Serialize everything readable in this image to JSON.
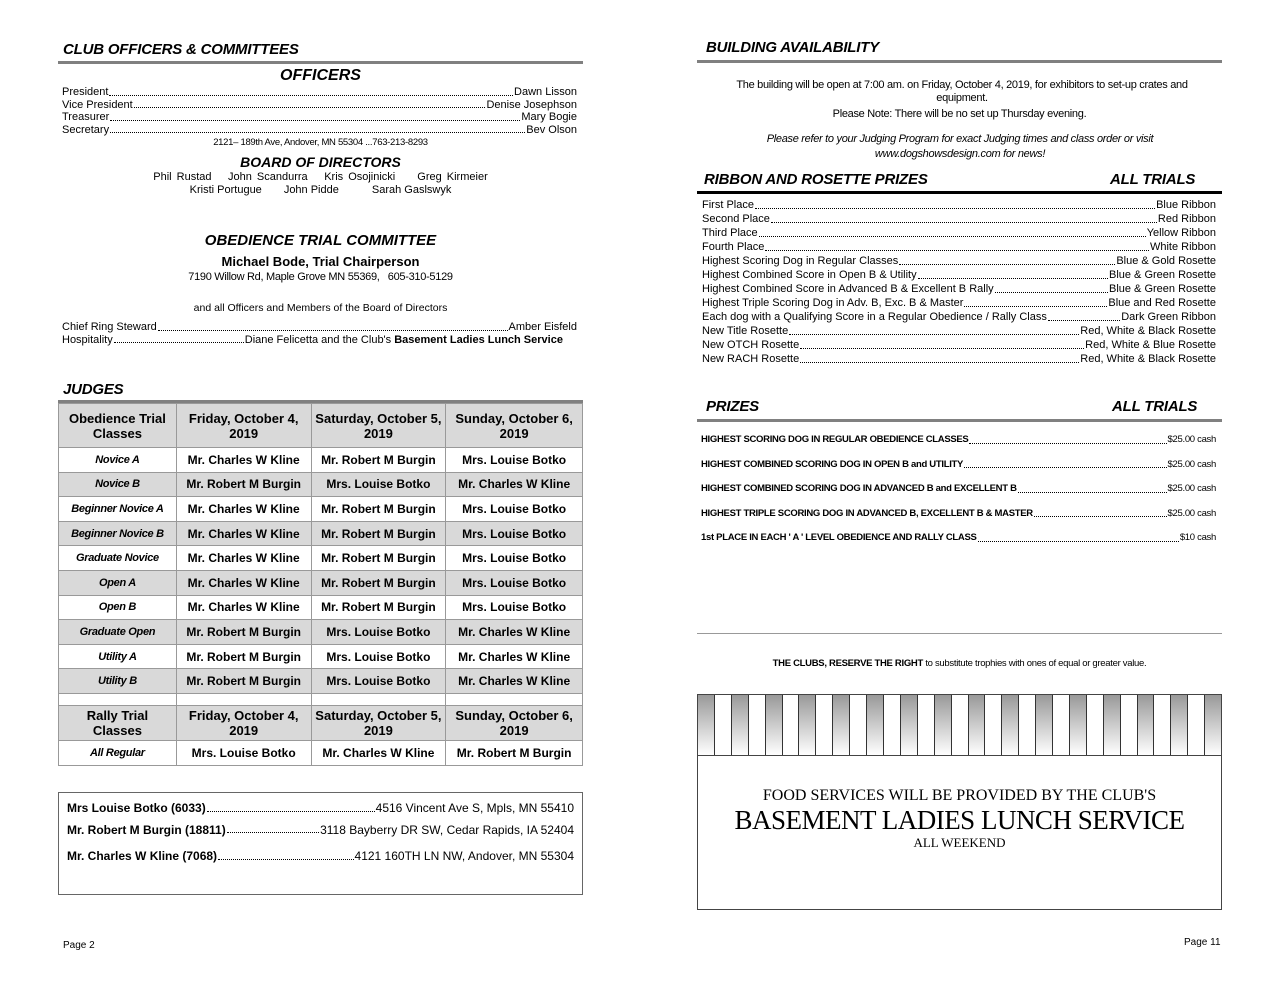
{
  "left": {
    "section_title": "CLUB OFFICERS & COMMITTEES",
    "officers_title": "OFFICERS",
    "officers": [
      {
        "role": "President",
        "name": "Dawn Lisson"
      },
      {
        "role": "Vice President",
        "name": "Denise Josephson"
      },
      {
        "role": "Treasurer",
        "name": "Mary Bogie"
      },
      {
        "role": "Secretary",
        "name": "Bev Olson"
      }
    ],
    "secretary_address": "2121– 189th Ave, Andover, MN 55304 ...763-213-8293",
    "board_title": "BOARD OF DIRECTORS",
    "board_row1": [
      "Phil Rustad",
      "John Scandurra",
      "Kris Osojinicki",
      "Greg Kirmeier"
    ],
    "board_row2": [
      "Kristi Portugue",
      "John Pidde",
      "Sarah Gaslswyk"
    ],
    "committee_title": "OBEDIENCE TRIAL COMMITTEE",
    "chair": "Michael Bode, Trial Chairperson",
    "chair_address": "7190 Willow Rd, Maple Grove MN 55369,   605-310-5129",
    "committee_note": "and all Officers and Members of the Board of Directors",
    "staff": [
      {
        "role": "Chief Ring Steward",
        "name": "Amber Eisfeld"
      },
      {
        "role": "Hospitality",
        "name": "Diane Felicetta and the Club's ",
        "bold": "Basement Ladies Lunch Service"
      }
    ],
    "judges_title": "JUDGES",
    "judges_table": {
      "headers": [
        "Obedience Trial Classes",
        "Friday, October 4, 2019",
        "Saturday, October 5, 2019",
        "Sunday, October 6, 2019"
      ],
      "rows": [
        [
          "Novice A",
          "Mr. Charles W Kline",
          "Mr. Robert M Burgin",
          "Mrs. Louise Botko"
        ],
        [
          "Novice B",
          "Mr. Robert M Burgin",
          "Mrs. Louise Botko",
          "Mr. Charles W Kline"
        ],
        [
          "Beginner Novice A",
          "Mr. Charles W Kline",
          "Mr. Robert M Burgin",
          "Mrs. Louise Botko"
        ],
        [
          "Beginner Novice B",
          "Mr. Charles W Kline",
          "Mr. Robert M Burgin",
          "Mrs. Louise Botko"
        ],
        [
          "Graduate Novice",
          "Mr. Charles W Kline",
          "Mr. Robert M Burgin",
          "Mrs. Louise Botko"
        ],
        [
          "Open A",
          "Mr. Charles W Kline",
          "Mr. Robert M Burgin",
          "Mrs. Louise Botko"
        ],
        [
          "Open B",
          "Mr. Charles W Kline",
          "Mr. Robert M Burgin",
          "Mrs. Louise Botko"
        ],
        [
          "Graduate Open",
          "Mr. Robert M Burgin",
          "Mrs. Louise Botko",
          "Mr. Charles W Kline"
        ],
        [
          "Utility A",
          "Mr. Robert M Burgin",
          "Mrs. Louise Botko",
          "Mr. Charles W Kline"
        ],
        [
          "Utility B",
          "Mr. Robert M Burgin",
          "Mrs. Louise Botko",
          "Mr. Charles W Kline"
        ]
      ],
      "rally_headers": [
        "Rally Trial Classes",
        "Friday, October 4, 2019",
        "Saturday, October 5, 2019",
        "Sunday, October 6, 2019"
      ],
      "rally_rows": [
        [
          "All Regular",
          "Mrs. Louise Botko",
          "Mr. Charles W Kline",
          "Mr. Robert M Burgin"
        ]
      ]
    },
    "judge_addresses": [
      {
        "name": "Mrs Louise Botko  (6033)",
        "address": "4516 Vincent Ave S, Mpls, MN 55410"
      },
      {
        "name": "Mr. Robert M Burgin  (18811)",
        "address": "3118 Bayberry DR SW, Cedar Rapids, IA 52404"
      },
      {
        "name": "Mr. Charles W Kline (7068)",
        "address": "4121 160TH LN NW, Andover, MN 55304"
      }
    ],
    "page_number": "Page 2"
  },
  "right": {
    "building_title": "BUILDING AVAILABILITY",
    "building_text1": "The building will be open at 7:00 am. on Friday, October  4, 2019, for exhibitors to set-up crates and equipment.",
    "building_text2": "Please Note:  There will be no set up Thursday evening.",
    "building_text3": "Please refer to your Judging Program for exact Judging times and class order or visit www.dogshowsdesign.com for news!",
    "ribbon_title": "RIBBON AND ROSETTE PRIZES",
    "ribbon_scope": "ALL TRIALS",
    "ribbons": [
      {
        "label": "First Place",
        "value": "Blue Ribbon"
      },
      {
        "label": "Second Place",
        "value": "Red Ribbon"
      },
      {
        "label": "Third Place",
        "value": "Yellow Ribbon"
      },
      {
        "label": "Fourth Place",
        "value": "White Ribbon"
      },
      {
        "label": "Highest Scoring Dog in Regular Classes",
        "value": "Blue & Gold Rosette"
      },
      {
        "label": "Highest Combined Score in Open B & Utility",
        "value": "Blue & Green Rosette"
      },
      {
        "label": "Highest Combined Score in Advanced B & Excellent B Rally",
        "value": "Blue & Green Rosette"
      },
      {
        "label": "Highest Triple Scoring Dog in Adv. B, Exc. B & Master",
        "value": "Blue and Red Rosette"
      },
      {
        "label": "Each dog with a Qualifying Score in a Regular Obedience / Rally Class",
        "value": "Dark Green Ribbon"
      },
      {
        "label": "New Title Rosette",
        "value": "Red, White & Black Rosette"
      },
      {
        "label": "New OTCH Rosette",
        "value": "Red, White & Blue Rosette"
      },
      {
        "label": "New RACH Rosette",
        "value": "Red, White & Black Rosette"
      }
    ],
    "prizes_title": "PRIZES",
    "prizes_scope": "ALL TRIALS",
    "prizes": [
      {
        "label": "HIGHEST SCORING DOG IN REGULAR OBEDIENCE CLASSES",
        "value": "$25.00 cash"
      },
      {
        "label": "HIGHEST COMBINED SCORING DOG IN  OPEN B and UTILITY",
        "value": "$25.00 cash"
      },
      {
        "label": "HIGHEST COMBINED SCORING DOG IN ADVANCED B and EXCELLENT B",
        "value": "$25.00 cash"
      },
      {
        "label": "HIGHEST TRIPLE SCORING DOG IN ADVANCED B, EXCELLENT B & MASTER",
        "value": "$25.00 cash"
      },
      {
        "label": "1st PLACE IN EACH ' A ' LEVEL OBEDIENCE AND RALLY CLASS",
        "value": "$10 cash"
      }
    ],
    "reserve_bold": "THE CLUBS, RESERVE THE RIGHT",
    "reserve_rest": " to substitute trophies with ones of equal or greater value.",
    "food_line1": "FOOD SERVICES WILL BE PROVIDED BY THE CLUB'S",
    "food_line2": "BASEMENT LADIES LUNCH SERVICE",
    "food_line3": "ALL WEEKEND",
    "page_number": "Page 11"
  }
}
